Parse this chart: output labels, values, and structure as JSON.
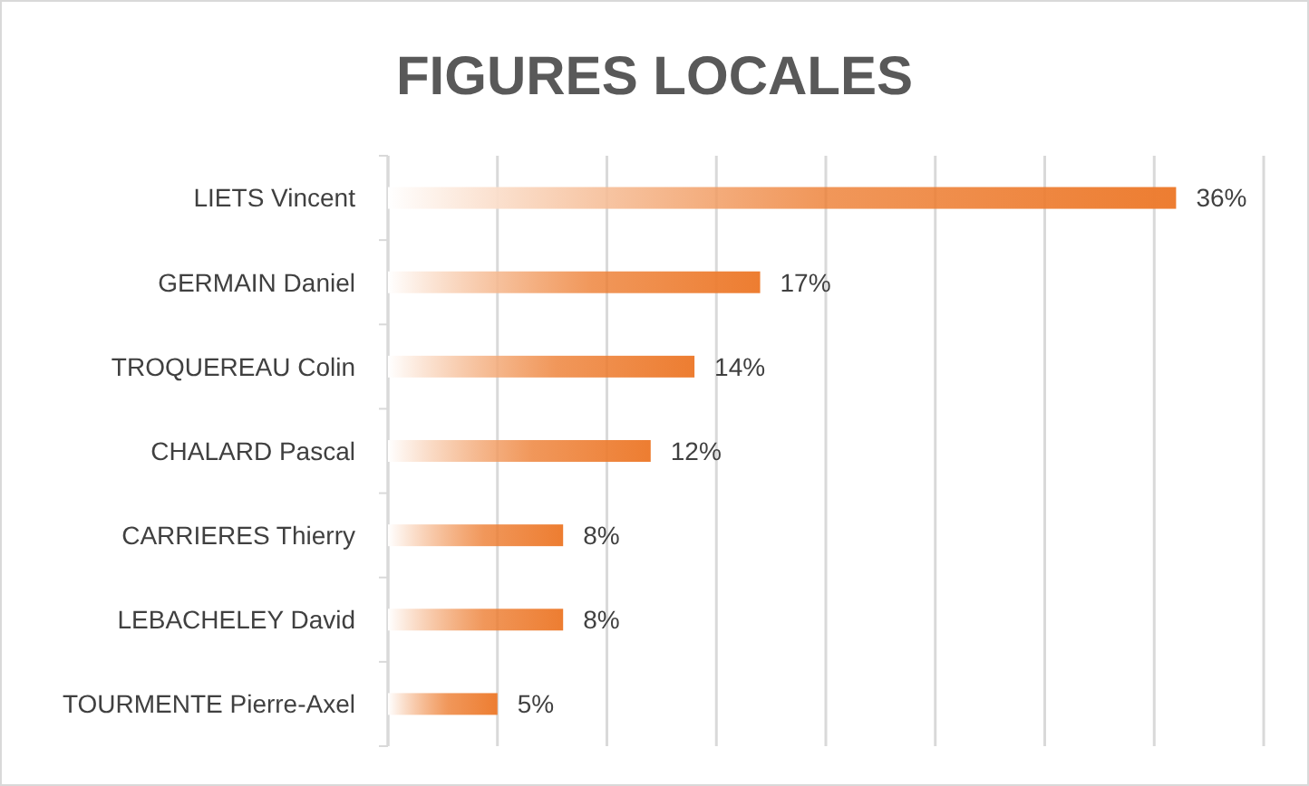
{
  "chart_data": {
    "type": "bar",
    "title": "FIGURES LOCALES",
    "orientation": "horizontal",
    "categories": [
      "LIETS Vincent",
      "GERMAIN Daniel",
      "TROQUEREAU Colin",
      "CHALARD Pascal",
      "CARRIERES Thierry",
      "LEBACHELEY David",
      "TOURMENTE Pierre-Axel"
    ],
    "values": [
      36,
      17,
      14,
      12,
      8,
      8,
      5
    ],
    "value_labels": [
      "36%",
      "17%",
      "14%",
      "12%",
      "8%",
      "8%",
      "5%"
    ],
    "color": "#ed7d31",
    "xlim": [
      0,
      40
    ],
    "xticks": [
      {
        "value": 0,
        "label": null
      },
      {
        "value": 5,
        "label": null
      },
      {
        "value": 10,
        "label": null
      },
      {
        "value": 15,
        "label": null
      },
      {
        "value": 20,
        "label": null
      },
      {
        "value": 25,
        "label": null
      },
      {
        "value": 30,
        "label": null
      },
      {
        "value": 35,
        "label": null
      },
      {
        "value": 40,
        "label": null
      }
    ],
    "grid": "x",
    "tick_labels": "y"
  }
}
